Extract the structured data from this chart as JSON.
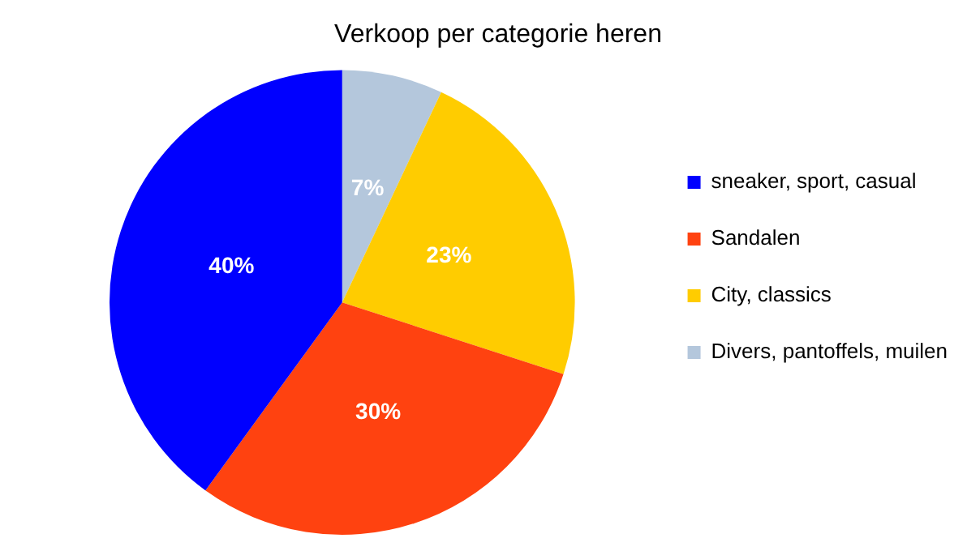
{
  "chart_data": {
    "type": "pie",
    "title": "Verkoop per categorie heren",
    "categories": [
      "sneaker, sport, casual",
      "Sandalen",
      "City, classics",
      "Divers, pantoffels, muilen"
    ],
    "values": [
      40,
      30,
      23,
      7
    ],
    "colors": [
      "#0000ff",
      "#ff4210",
      "#ffcc00",
      "#b4c7dc"
    ],
    "value_labels": [
      "40%",
      "30%",
      "23%",
      "7%"
    ],
    "legend": "right"
  }
}
